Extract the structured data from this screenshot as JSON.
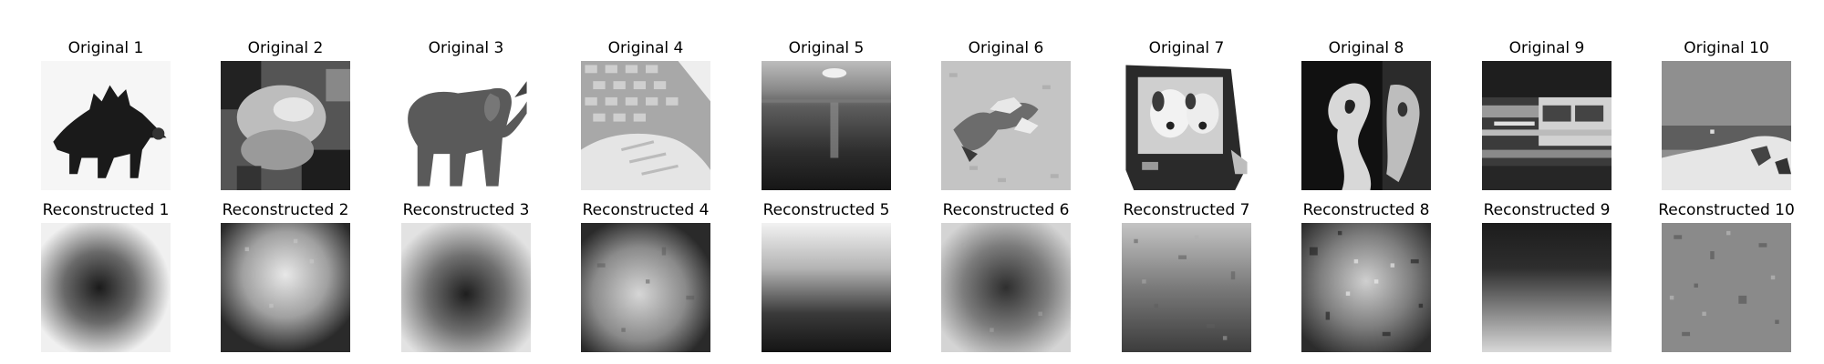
{
  "figure": {
    "rows": [
      {
        "row": "original",
        "panels": [
          {
            "title": "Original 1",
            "content": "stegosaurus-silhouette"
          },
          {
            "title": "Original 2",
            "content": "blurry-object"
          },
          {
            "title": "Original 3",
            "content": "elephant"
          },
          {
            "title": "Original 4",
            "content": "hand-on-keyboard"
          },
          {
            "title": "Original 5",
            "content": "sunset-over-water"
          },
          {
            "title": "Original 6",
            "content": "lizard-on-ground"
          },
          {
            "title": "Original 7",
            "content": "dog-on-television"
          },
          {
            "title": "Original 8",
            "content": "person-close-up"
          },
          {
            "title": "Original 9",
            "content": "bus-in-motion"
          },
          {
            "title": "Original 10",
            "content": "beach-scene"
          }
        ]
      },
      {
        "row": "reconstructed",
        "panels": [
          {
            "title": "Reconstructed 1",
            "content": "dark-center-blob"
          },
          {
            "title": "Reconstructed 2",
            "content": "bright-center-blob"
          },
          {
            "title": "Reconstructed 3",
            "content": "dark-center-blob"
          },
          {
            "title": "Reconstructed 4",
            "content": "noisy-light-center"
          },
          {
            "title": "Reconstructed 5",
            "content": "dark-bottom-gradient"
          },
          {
            "title": "Reconstructed 6",
            "content": "dark-center-noisy"
          },
          {
            "title": "Reconstructed 7",
            "content": "dark-bottom-noisy"
          },
          {
            "title": "Reconstructed 8",
            "content": "high-noise"
          },
          {
            "title": "Reconstructed 9",
            "content": "dark-top-gradient"
          },
          {
            "title": "Reconstructed 10",
            "content": "mid-gray-noise"
          }
        ]
      }
    ]
  }
}
